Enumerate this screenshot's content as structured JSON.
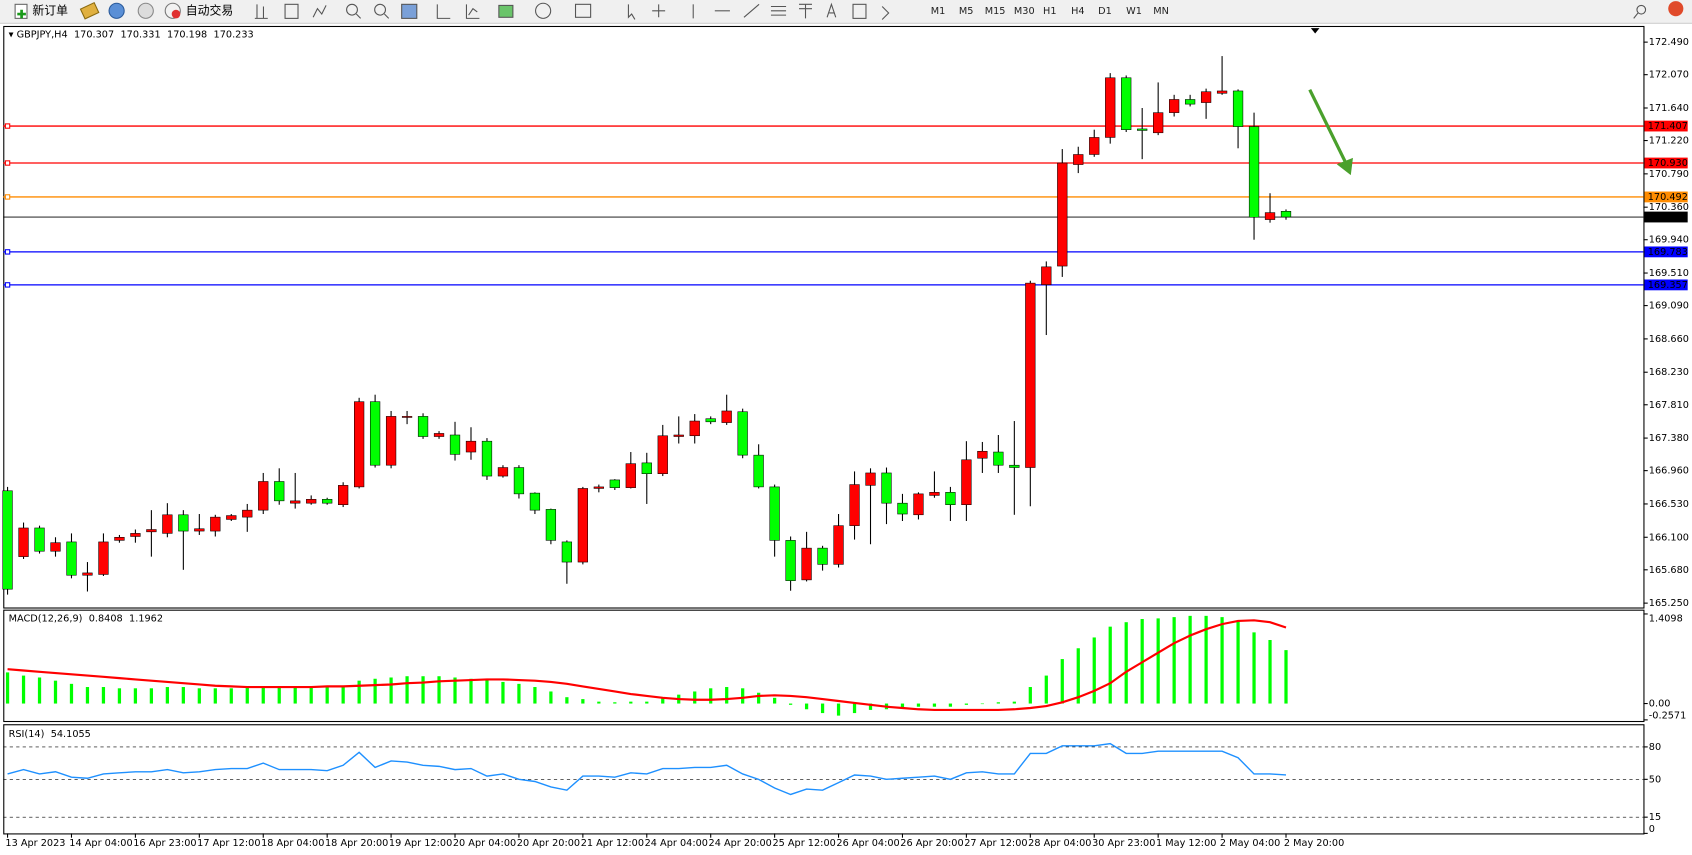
{
  "toolbar": {
    "new_order": "新订单",
    "auto_trading": "自动交易",
    "timeframes": [
      "M1",
      "M5",
      "M15",
      "M30",
      "H1",
      "H4",
      "D1",
      "W1",
      "MN"
    ]
  },
  "chart_data": [
    {
      "type": "candlestick",
      "symbol": "GBPJPY,H4",
      "categories": [
        "13 Apr 2023",
        null,
        null,
        null,
        "14 Apr 04:00",
        null,
        null,
        null,
        "16 Apr 23:00",
        null,
        null,
        null,
        "17 Apr 12:00",
        null,
        null,
        null,
        "18 Apr 04:00",
        null,
        null,
        null,
        "18 Apr 20:00",
        null,
        null,
        null,
        "19 Apr 12:00",
        null,
        null,
        null,
        "20 Apr 04:00",
        null,
        null,
        null,
        "20 Apr 20:00",
        null,
        null,
        null,
        "21 Apr 12:00",
        null,
        null,
        null,
        "24 Apr 04:00",
        null,
        null,
        null,
        "24 Apr 20:00",
        null,
        null,
        null,
        "25 Apr 12:00",
        null,
        null,
        null,
        "26 Apr 04:00",
        null,
        null,
        null,
        "26 Apr 20:00",
        null,
        null,
        null,
        "27 Apr 12:00",
        null,
        null,
        null,
        "28 Apr 04:00",
        null,
        null,
        null,
        "30 Apr 23:00",
        null,
        null,
        null,
        "1 May 12:00",
        null,
        null,
        null,
        "2 May 04:00",
        null,
        null,
        null,
        "2 May 20:00"
      ],
      "open": [
        166.7,
        165.85,
        166.22,
        165.92,
        166.04,
        165.61,
        165.62,
        166.06,
        166.11,
        166.17,
        166.15,
        166.39,
        166.18,
        166.18,
        166.33,
        166.36,
        166.45,
        166.82,
        166.54,
        166.54,
        166.59,
        166.52,
        166.75,
        167.85,
        167.03,
        167.65,
        167.66,
        167.4,
        167.42,
        167.2,
        167.34,
        166.89,
        167.0,
        166.67,
        166.46,
        166.04,
        165.78,
        166.73,
        166.84,
        166.74,
        167.06,
        166.92,
        167.4,
        167.41,
        167.63,
        167.58,
        167.72,
        167.16,
        166.75,
        166.06,
        165.55,
        165.96,
        165.75,
        166.25,
        166.77,
        166.93,
        166.54,
        166.39,
        166.64,
        166.68,
        166.52,
        167.12,
        167.2,
        167.03,
        167.0,
        169.36,
        169.6,
        170.91,
        171.04,
        171.26,
        172.03,
        171.37,
        171.32,
        171.58,
        171.75,
        171.71,
        171.83,
        171.86,
        171.4,
        170.2,
        170.307
      ],
      "high": [
        166.75,
        166.29,
        166.25,
        166.1,
        166.15,
        165.78,
        166.15,
        166.13,
        166.2,
        166.45,
        166.54,
        166.45,
        166.4,
        166.39,
        166.4,
        166.53,
        166.93,
        166.99,
        166.93,
        166.64,
        166.61,
        166.81,
        167.9,
        167.94,
        167.73,
        167.73,
        167.7,
        167.47,
        167.59,
        167.52,
        167.38,
        167.03,
        167.03,
        166.68,
        166.47,
        166.06,
        166.75,
        166.78,
        166.85,
        167.2,
        167.19,
        167.55,
        167.66,
        167.69,
        167.66,
        167.94,
        167.76,
        167.3,
        166.78,
        166.11,
        166.17,
        165.99,
        166.4,
        166.95,
        166.99,
        167.0,
        166.66,
        166.68,
        166.95,
        166.75,
        167.34,
        167.33,
        167.42,
        167.6,
        169.41,
        169.66,
        171.11,
        171.14,
        171.36,
        172.09,
        172.06,
        171.64,
        171.97,
        171.81,
        171.81,
        171.89,
        172.31,
        171.88,
        171.58,
        170.54,
        170.331
      ],
      "low": [
        165.36,
        165.82,
        165.89,
        165.85,
        165.57,
        165.4,
        165.6,
        166.03,
        166.03,
        165.85,
        166.1,
        165.68,
        166.13,
        166.11,
        166.31,
        166.17,
        166.4,
        166.52,
        166.47,
        166.52,
        166.52,
        166.49,
        166.73,
        167.0,
        166.99,
        167.56,
        167.37,
        167.37,
        167.09,
        167.1,
        166.84,
        166.87,
        166.6,
        166.4,
        166.01,
        165.5,
        165.75,
        166.68,
        166.71,
        166.73,
        166.53,
        166.89,
        167.31,
        167.31,
        167.56,
        167.55,
        167.12,
        166.73,
        165.85,
        165.41,
        165.53,
        165.67,
        165.71,
        166.07,
        166.01,
        166.27,
        166.31,
        166.33,
        166.61,
        166.31,
        166.31,
        166.93,
        166.93,
        166.39,
        166.5,
        168.71,
        169.46,
        170.8,
        171.01,
        171.18,
        171.33,
        170.98,
        171.29,
        171.53,
        171.66,
        171.5,
        171.81,
        171.12,
        169.94,
        170.16,
        170.198
      ],
      "close": [
        165.43,
        166.22,
        165.92,
        166.03,
        165.61,
        165.64,
        166.04,
        166.1,
        166.15,
        166.2,
        166.39,
        166.18,
        166.21,
        166.36,
        166.38,
        166.45,
        166.82,
        166.57,
        166.57,
        166.59,
        166.54,
        166.77,
        167.85,
        167.03,
        167.66,
        167.66,
        167.4,
        167.44,
        167.17,
        167.34,
        166.89,
        167.0,
        166.66,
        166.45,
        166.06,
        165.78,
        166.73,
        166.75,
        166.74,
        167.05,
        166.92,
        167.41,
        167.42,
        167.6,
        167.59,
        167.73,
        167.16,
        166.75,
        166.06,
        165.54,
        165.96,
        165.75,
        166.25,
        166.78,
        166.93,
        166.54,
        166.4,
        166.66,
        166.68,
        166.52,
        167.1,
        167.21,
        167.03,
        167.0,
        169.38,
        169.59,
        170.93,
        171.04,
        171.26,
        172.03,
        171.36,
        171.35,
        171.58,
        171.75,
        171.69,
        171.85,
        171.86,
        171.4,
        170.23,
        170.29,
        170.233
      ],
      "up_color": "#ff0000",
      "down_color": "#00ff00",
      "ylim": [
        165.194,
        172.685
      ],
      "yticks": [
        {
          "value": 172.49,
          "label": "172.490"
        },
        {
          "value": 172.07,
          "label": "172.070"
        },
        {
          "value": 171.64,
          "label": "171.640"
        },
        {
          "value": 171.22,
          "label": "171.220"
        },
        {
          "value": 170.79,
          "label": "170.790"
        },
        {
          "value": 170.36,
          "label": "170.360"
        },
        {
          "value": 169.94,
          "label": "169.940"
        },
        {
          "value": 169.51,
          "label": "169.510"
        },
        {
          "value": 169.09,
          "label": "169.090"
        },
        {
          "value": 168.66,
          "label": "168.660"
        },
        {
          "value": 168.23,
          "label": "168.230"
        },
        {
          "value": 167.81,
          "label": "167.810"
        },
        {
          "value": 167.38,
          "label": "167.380"
        },
        {
          "value": 166.96,
          "label": "166.960"
        },
        {
          "value": 166.53,
          "label": "166.530"
        },
        {
          "value": 166.1,
          "label": "166.100"
        },
        {
          "value": 165.68,
          "label": "165.680"
        },
        {
          "value": 165.25,
          "label": "165.250"
        }
      ],
      "levels": [
        {
          "value": 171.407,
          "color": "#ff0000"
        },
        {
          "value": 170.93,
          "label": "170.930",
          "color": "#ff0000"
        },
        {
          "value": 170.492,
          "color": "#ff8c00"
        },
        {
          "value": 169.783,
          "color": "#0000ff"
        },
        {
          "value": 169.357,
          "color": "#0000ff"
        }
      ]
    },
    {
      "type": "macd",
      "title": "MACD(12,26,9)",
      "values": [
        0.49,
        0.44,
        0.41,
        0.36,
        0.31,
        0.26,
        0.26,
        0.24,
        0.24,
        0.24,
        0.26,
        0.26,
        0.24,
        0.24,
        0.24,
        0.26,
        0.26,
        0.27,
        0.26,
        0.26,
        0.26,
        0.27,
        0.36,
        0.39,
        0.41,
        0.43,
        0.43,
        0.43,
        0.41,
        0.39,
        0.37,
        0.34,
        0.31,
        0.26,
        0.19,
        0.1,
        0.07,
        0.03,
        0.02,
        0.03,
        0.03,
        0.09,
        0.14,
        0.19,
        0.24,
        0.26,
        0.24,
        0.17,
        0.09,
        -0.02,
        -0.09,
        -0.15,
        -0.19,
        -0.15,
        -0.1,
        -0.09,
        -0.07,
        -0.05,
        -0.05,
        -0.05,
        -0.02,
        0,
        0.02,
        0.03,
        0.26,
        0.44,
        0.7,
        0.87,
        1.04,
        1.21,
        1.28,
        1.33,
        1.34,
        1.36,
        1.38,
        1.38,
        1.36,
        1.29,
        1.12,
        1.0,
        0.8408
      ],
      "color": "#00ff00",
      "signal": [
        0.54,
        0.52,
        0.5,
        0.48,
        0.46,
        0.44,
        0.42,
        0.4,
        0.38,
        0.36,
        0.34,
        0.32,
        0.3,
        0.28,
        0.27,
        0.26,
        0.26,
        0.26,
        0.26,
        0.26,
        0.27,
        0.27,
        0.28,
        0.29,
        0.3,
        0.32,
        0.33,
        0.35,
        0.36,
        0.37,
        0.38,
        0.38,
        0.37,
        0.36,
        0.34,
        0.31,
        0.27,
        0.23,
        0.19,
        0.15,
        0.12,
        0.09,
        0.07,
        0.06,
        0.06,
        0.07,
        0.09,
        0.12,
        0.13,
        0.12,
        0.1,
        0.07,
        0.04,
        0.01,
        -0.02,
        -0.05,
        -0.07,
        -0.09,
        -0.1,
        -0.1,
        -0.1,
        -0.1,
        -0.1,
        -0.09,
        -0.07,
        -0.04,
        0.02,
        0.1,
        0.2,
        0.32,
        0.5,
        0.65,
        0.8,
        0.95,
        1.07,
        1.17,
        1.25,
        1.3,
        1.31,
        1.28,
        1.1962
      ],
      "signal_color": "#ff0000",
      "ylim": [
        -0.2571,
        1.4098
      ],
      "yticks": [
        1.4098,
        {
          "value": 0,
          "label": "0.00"
        },
        -0.2571
      ]
    },
    {
      "type": "line",
      "title": "RSI(14)",
      "values": [
        55,
        59,
        55,
        57,
        52,
        51,
        55,
        56,
        57,
        57,
        59,
        56,
        57,
        59,
        60,
        60,
        65,
        59,
        59,
        59,
        58,
        63,
        75,
        61,
        67,
        66,
        63,
        62,
        59,
        60,
        53,
        55,
        50,
        48,
        43,
        40,
        53,
        53,
        52,
        56,
        55,
        60,
        60,
        61,
        61,
        63,
        55,
        50,
        42,
        36,
        41,
        40,
        47,
        54,
        53,
        50,
        51,
        52,
        53,
        50,
        56,
        57,
        55,
        55,
        74,
        74,
        81,
        81,
        81,
        83,
        74,
        74,
        76,
        76,
        76,
        76,
        76,
        70,
        55,
        55,
        54.1055
      ],
      "color": "#1e90ff",
      "ylim": [
        0,
        100
      ],
      "yticks": [
        80,
        50,
        15,
        0
      ]
    }
  ]
}
